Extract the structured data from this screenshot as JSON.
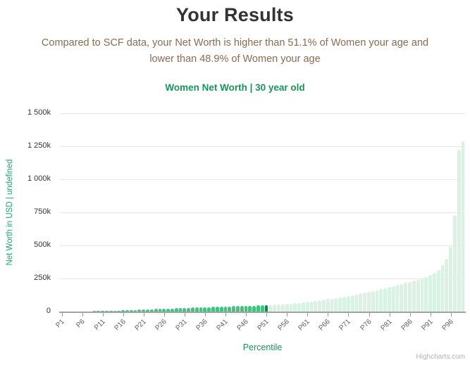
{
  "header": {
    "title": "Your Results",
    "subtitle_lines": [
      "Compared to SCF data, your Net Worth is higher than 51.1% of Women your age and",
      "lower than 48.9% of Women your age"
    ]
  },
  "chart": {
    "title": "Women Net Worth | 30 year old",
    "credit": "Highcharts.com"
  },
  "chart_data": {
    "type": "bar",
    "title": "Women Net Worth | 30 year old",
    "xlabel": "Percentile",
    "ylabel": "Net Worth in USD | undefined",
    "unit": "USD thousands (k)",
    "ylim_k": [
      0,
      1500
    ],
    "ytick_step_k": 250,
    "ytick_labels": [
      "0",
      "250k",
      "500k",
      "750k",
      "1 000k",
      "1 250k",
      "1 500k"
    ],
    "xtick_labels": [
      "P1",
      "P6",
      "P11",
      "P16",
      "P21",
      "P26",
      "P31",
      "P36",
      "P41",
      "P46",
      "P51",
      "P56",
      "P61",
      "P66",
      "P71",
      "P76",
      "P81",
      "P86",
      "P91",
      "P96"
    ],
    "xtick_every": 5,
    "categories": [
      "P1",
      "P2",
      "P3",
      "P4",
      "P5",
      "P6",
      "P7",
      "P8",
      "P9",
      "P10",
      "P11",
      "P12",
      "P13",
      "P14",
      "P15",
      "P16",
      "P17",
      "P18",
      "P19",
      "P20",
      "P21",
      "P22",
      "P23",
      "P24",
      "P25",
      "P26",
      "P27",
      "P28",
      "P29",
      "P30",
      "P31",
      "P32",
      "P33",
      "P34",
      "P35",
      "P36",
      "P37",
      "P38",
      "P39",
      "P40",
      "P41",
      "P42",
      "P43",
      "P44",
      "P45",
      "P46",
      "P47",
      "P48",
      "P49",
      "P50",
      "P51",
      "P52",
      "P53",
      "P54",
      "P55",
      "P56",
      "P57",
      "P58",
      "P59",
      "P60",
      "P61",
      "P62",
      "P63",
      "P64",
      "P65",
      "P66",
      "P67",
      "P68",
      "P69",
      "P70",
      "P71",
      "P72",
      "P73",
      "P74",
      "P75",
      "P76",
      "P77",
      "P78",
      "P79",
      "P80",
      "P81",
      "P82",
      "P83",
      "P84",
      "P85",
      "P86",
      "P87",
      "P88",
      "P89",
      "P90",
      "P91",
      "P92",
      "P93",
      "P94",
      "P95",
      "P96",
      "P97",
      "P98",
      "P99"
    ],
    "values_k": [
      0.1,
      0.2,
      0.4,
      0.7,
      1,
      1.4,
      1.9,
      2.4,
      3,
      3.6,
      4.4,
      5.2,
      6,
      7,
      8,
      9.2,
      10.4,
      11.6,
      12.8,
      14,
      15.2,
      16.4,
      17.6,
      18.8,
      20,
      21.2,
      22.4,
      23.6,
      24.8,
      26,
      27.2,
      28.4,
      29.6,
      30.8,
      32,
      33,
      34,
      35,
      36,
      37,
      38,
      39,
      40,
      41,
      42,
      43,
      43.8,
      44.6,
      45.4,
      46.2,
      48,
      49.5,
      51,
      53,
      55,
      57.5,
      60,
      63,
      66.5,
      70,
      73.5,
      77,
      81,
      85,
      89,
      93.5,
      98,
      103,
      108,
      113,
      118,
      124,
      130,
      136,
      142,
      148,
      155,
      162,
      170,
      178,
      186,
      194,
      202,
      210,
      218,
      226,
      234,
      242,
      252,
      262,
      275,
      292,
      315,
      350,
      400,
      487,
      730,
      1225,
      1285
    ],
    "highlight_index": 50,
    "highlight_category": "P51",
    "colors": {
      "bar_below_user": "#3ec67f",
      "bar_user": "#0e8a50",
      "bar_above_user": "#d8f2e3",
      "gridline": "#e6e6e6",
      "axis_line": "#a3a3a3",
      "axis_title_green": "#1ba46c",
      "chart_title_green": "#17945a",
      "subtitle_brown": "#8b6a51",
      "title_dark": "#333333"
    },
    "legend": "none",
    "grid": true
  }
}
